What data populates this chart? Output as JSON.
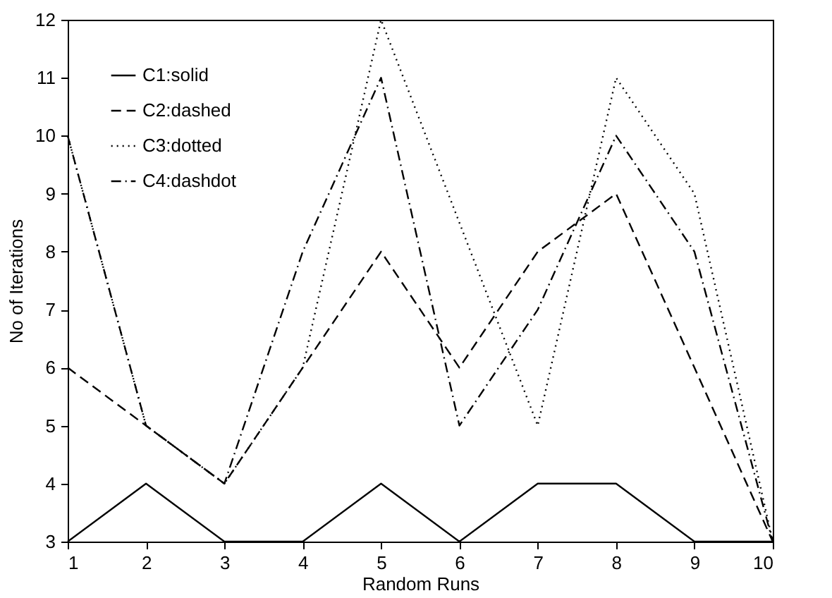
{
  "chart_data": {
    "type": "line",
    "xlabel": "Random Runs",
    "ylabel": "No of Iterations",
    "x": [
      1,
      2,
      3,
      4,
      5,
      6,
      7,
      8,
      9,
      10
    ],
    "xlim": [
      1,
      10
    ],
    "xticks": [
      1,
      2,
      3,
      4,
      5,
      6,
      7,
      8,
      9,
      10
    ],
    "ylim": [
      3,
      12
    ],
    "yticks": [
      3,
      4,
      5,
      6,
      7,
      8,
      9,
      10,
      11,
      12
    ],
    "legend": "top left",
    "series": [
      {
        "name": "C1:solid",
        "color": "#000000",
        "line_style": "solid",
        "values": [
          3,
          4,
          3,
          3,
          4,
          3,
          4,
          4,
          3,
          3
        ]
      },
      {
        "name": "C2:dashed",
        "color": "#000000",
        "line_style": "dashed",
        "values": [
          6,
          5,
          4,
          6,
          8,
          6,
          8,
          9,
          6,
          3
        ]
      },
      {
        "name": "C3:dotted",
        "color": "#000000",
        "line_style": "dotted",
        "values": [
          10,
          5,
          4,
          6,
          12,
          8.5,
          5,
          11,
          9,
          3
        ]
      },
      {
        "name": "C4:dashdot",
        "color": "#000000",
        "line_style": "dashdot",
        "values": [
          10,
          5,
          4,
          8,
          11,
          5,
          7,
          10,
          8,
          3
        ]
      }
    ]
  }
}
